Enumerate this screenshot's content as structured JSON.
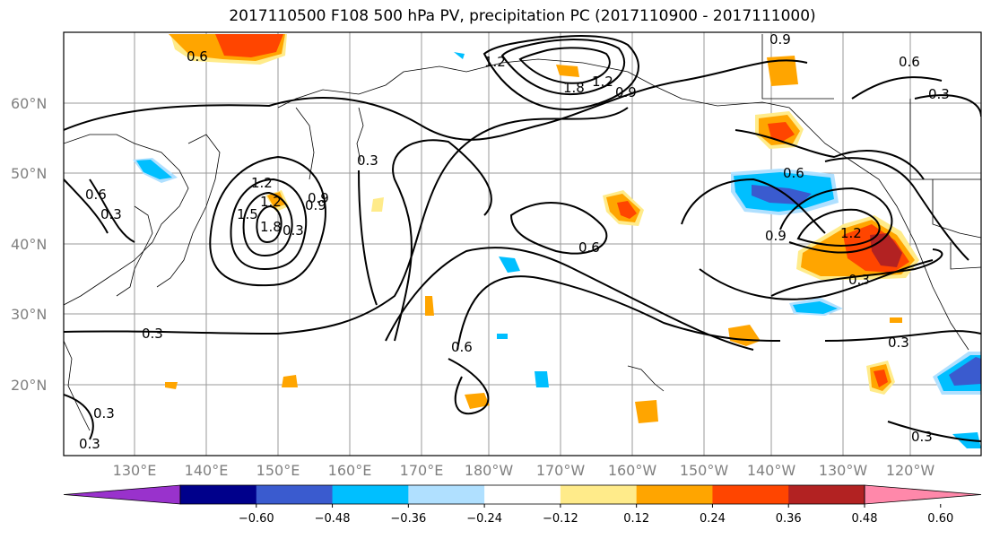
{
  "title": "2017110500 F108 500 hPa PV, precipitation PC (2017110900 - 2017111000)",
  "lat_labels": [
    "60°N",
    "50°N",
    "40°N",
    "30°N",
    "20°N"
  ],
  "lon_labels": [
    "130°E",
    "140°E",
    "150°E",
    "160°E",
    "170°E",
    "180°W",
    "170°W",
    "160°W",
    "150°W",
    "140°W",
    "130°W",
    "120°W"
  ],
  "colorbar": {
    "ticks": [
      "−0.60",
      "−0.48",
      "−0.36",
      "−0.24",
      "−0.12",
      "0.12",
      "0.24",
      "0.36",
      "0.48",
      "0.60"
    ],
    "colors": [
      "#9932cc",
      "#00008b",
      "#3a5bcf",
      "#00bfff",
      "#b0e0ff",
      "#ffffff",
      "#ffeb8a",
      "#ffa500",
      "#ff4500",
      "#b22222",
      "#ff88aa"
    ]
  },
  "contour_labels": [
    "0.9",
    "0.6",
    "0.3",
    "1.2",
    "1.8",
    "1.2",
    "0.9",
    "0.6",
    "0.3",
    "0.6",
    "0.3",
    "1.2",
    "1.5",
    "0.9",
    "1.2",
    "1.8",
    "0.3",
    "0.9",
    "0.3",
    "0.6",
    "0.6",
    "0.6",
    "0.9",
    "1.2",
    "0.3",
    "0.3",
    "0.3",
    "0.3",
    "0.3"
  ]
}
